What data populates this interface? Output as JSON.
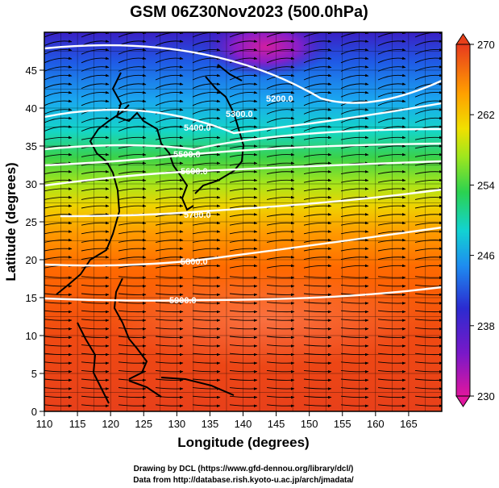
{
  "title": "GSM 06Z30Nov2023 (500.0hPa)",
  "x_axis": {
    "label": "Longitude (degrees)",
    "range": [
      110,
      170
    ],
    "ticks": [
      "110",
      "115",
      "120",
      "125",
      "130",
      "135",
      "140",
      "145",
      "150",
      "155",
      "160",
      "165"
    ]
  },
  "y_axis": {
    "label": "Latitude  (degrees)",
    "range": [
      0,
      50
    ],
    "ticks": [
      "0",
      "5",
      "10",
      "15",
      "20",
      "25",
      "30",
      "35",
      "40",
      "45"
    ]
  },
  "colorbar": {
    "labels": [
      "270",
      "262",
      "254",
      "246",
      "238",
      "230"
    ],
    "range": [
      230,
      270
    ],
    "colors": [
      "#e0169e",
      "#2b1fc8",
      "#1e8cf0",
      "#12d2d2",
      "#2bd250",
      "#8ee61e",
      "#f0e600",
      "#ffa000",
      "#ff5a00",
      "#e63a1e"
    ]
  },
  "contours": [
    {
      "label": "5200.0"
    },
    {
      "label": "5300.0"
    },
    {
      "label": "5400.0"
    },
    {
      "label": "5500.0"
    },
    {
      "label": "5600.0"
    },
    {
      "label": "5700.0"
    },
    {
      "label": "5800.0"
    },
    {
      "label": "5900.0"
    }
  ],
  "credit": {
    "line1": "Drawing by DCL (https://www.gfd-dennou.org/library/dcl/)",
    "line2": "Data from http://database.rish.kyoto-u.ac.jp/arch/jmadata/"
  }
}
